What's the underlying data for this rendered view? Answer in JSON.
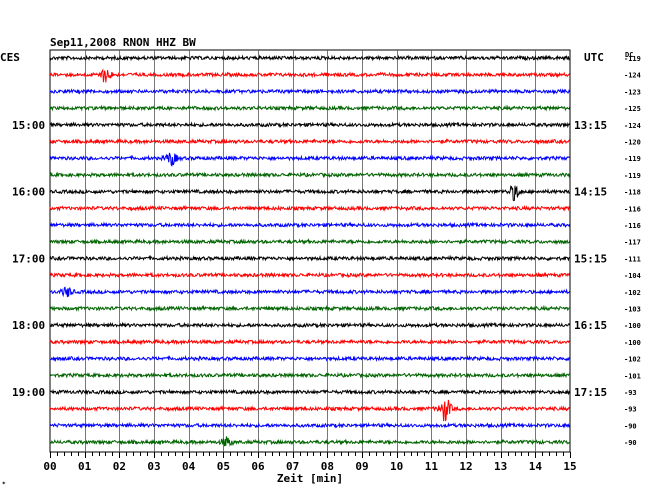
{
  "chart_data": {
    "type": "line",
    "title": "Sep11,2008  RNON HHZ BW",
    "left_timezone_label": "CES",
    "right_timezone_label": "UTC",
    "dc_header": "DC",
    "xlabel": "Zeit [min]",
    "xlim": [
      0,
      15
    ],
    "x_ticks": [
      "00",
      "01",
      "02",
      "03",
      "04",
      "05",
      "06",
      "07",
      "08",
      "09",
      "10",
      "11",
      "12",
      "13",
      "14",
      "15"
    ],
    "grid": true,
    "trace_colors": [
      "#000000",
      "#ff0000",
      "#0000ff",
      "#006400"
    ],
    "trace_minutes_per_line": 15,
    "left_hour_labels": [
      {
        "trace": 4,
        "label": "15:00"
      },
      {
        "trace": 8,
        "label": "16:00"
      },
      {
        "trace": 12,
        "label": "17:00"
      },
      {
        "trace": 16,
        "label": "18:00"
      },
      {
        "trace": 20,
        "label": "19:00"
      }
    ],
    "right_hour_labels": [
      {
        "trace": 4,
        "label": "13:15"
      },
      {
        "trace": 8,
        "label": "14:15"
      },
      {
        "trace": 12,
        "label": "15:15"
      },
      {
        "trace": 16,
        "label": "16:15"
      },
      {
        "trace": 20,
        "label": "17:15"
      }
    ],
    "dc_offsets": [
      -119,
      -124,
      -123,
      -125,
      -124,
      -120,
      -119,
      -119,
      -118,
      -116,
      -116,
      -117,
      -111,
      -104,
      -102,
      -103,
      -100,
      -100,
      -102,
      -101,
      -93,
      -93,
      -90,
      -90
    ],
    "events": [
      {
        "trace": 1,
        "minute": 1.6,
        "amplitude": 2.4
      },
      {
        "trace": 6,
        "minute": 3.5,
        "amplitude": 2.2
      },
      {
        "trace": 8,
        "minute": 13.4,
        "amplitude": 2.6
      },
      {
        "trace": 14,
        "minute": 0.5,
        "amplitude": 1.5
      },
      {
        "trace": 21,
        "minute": 11.4,
        "amplitude": 4.0
      },
      {
        "trace": 23,
        "minute": 5.1,
        "amplitude": 1.6
      }
    ]
  }
}
